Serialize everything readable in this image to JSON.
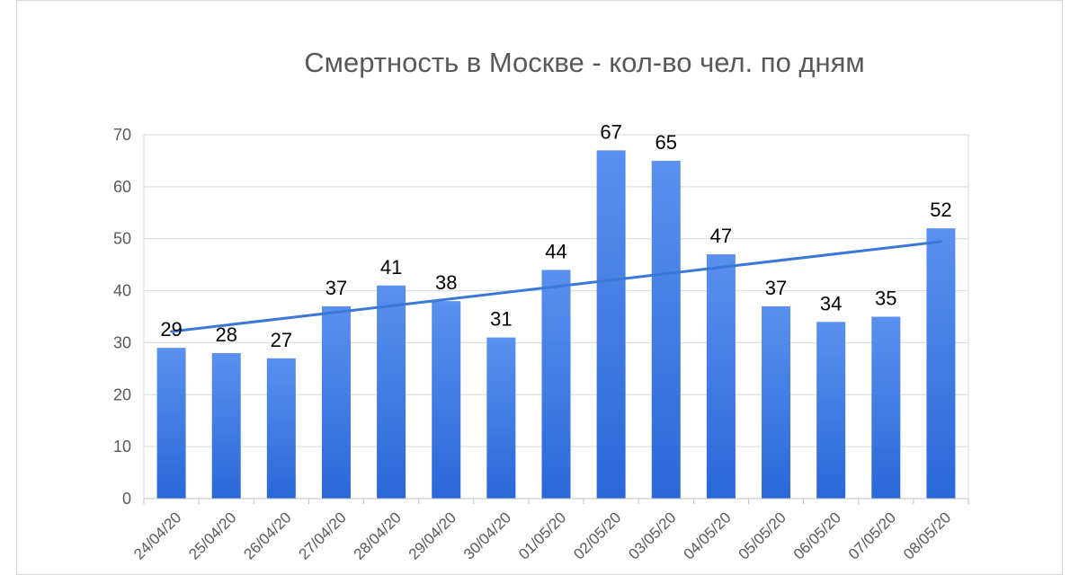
{
  "chart_data": {
    "type": "bar",
    "title": "Смертность в Москве - кол-во чел. по дням",
    "categories": [
      "24/04/20",
      "25/04/20",
      "26/04/20",
      "27/04/20",
      "28/04/20",
      "29/04/20",
      "30/04/20",
      "01/05/20",
      "02/05/20",
      "03/05/20",
      "04/05/20",
      "05/05/20",
      "06/05/20",
      "07/05/20",
      "08/05/20"
    ],
    "series": [
      {
        "values": [
          29,
          28,
          27,
          37,
          41,
          38,
          31,
          44,
          67,
          65,
          47,
          37,
          34,
          35,
          52
        ]
      }
    ],
    "trendline": {
      "type": "linear",
      "color": "#3a78d8"
    },
    "xlabel": "",
    "ylabel": "",
    "ylim": [
      0,
      70
    ],
    "yticks": [
      0,
      10,
      20,
      30,
      40,
      50,
      60,
      70
    ],
    "grid": true,
    "data_labels": true,
    "bar_color_top": "#5a90ef",
    "bar_color_bottom": "#2a68d8"
  }
}
